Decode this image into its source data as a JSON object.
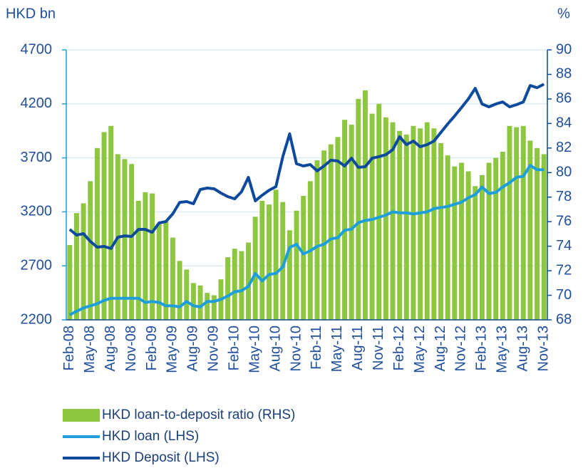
{
  "chart_data": {
    "type": "combo",
    "y_label": "HKD bn",
    "y2_label": "%",
    "categories": [
      "Feb-08",
      null,
      null,
      "May-08",
      null,
      null,
      "Aug-08",
      null,
      null,
      "Nov-08",
      null,
      null,
      "Feb-09",
      null,
      null,
      "May-09",
      null,
      null,
      "Aug-09",
      null,
      null,
      "Nov-09",
      null,
      null,
      "Feb-10",
      null,
      null,
      "May-10",
      null,
      null,
      "Aug-10",
      null,
      null,
      "Nov-10",
      null,
      null,
      "Feb-11",
      null,
      null,
      "May-11",
      null,
      null,
      "Aug-11",
      null,
      null,
      "Nov-11",
      null,
      null,
      "Feb-12",
      null,
      null,
      "May-12",
      null,
      null,
      "Aug-12",
      null,
      null,
      "Nov-12",
      null,
      null,
      "Feb-13",
      null,
      null,
      "May-13",
      null,
      null,
      "Aug-13",
      null,
      null,
      "Nov-13"
    ],
    "series": [
      {
        "name": "HKD loan-to-deposit ratio (RHS)",
        "type": "bar",
        "axis": "y2",
        "color": "#8dc63f",
        "values": [
          74.1,
          76.7,
          77.5,
          79.3,
          82.0,
          83.3,
          83.8,
          81.5,
          81.1,
          80.7,
          77.7,
          78.4,
          78.3,
          75.8,
          76.0,
          74.7,
          72.8,
          72.1,
          71.0,
          70.8,
          70.2,
          70.0,
          71.3,
          73.1,
          73.8,
          73.6,
          74.3,
          76.4,
          77.7,
          77.4,
          78.6,
          77.6,
          75.3,
          76.9,
          78.1,
          79.3,
          81.0,
          81.8,
          82.3,
          82.9,
          84.3,
          83.9,
          86.0,
          86.7,
          84.8,
          85.6,
          84.5,
          84.1,
          83.4,
          83.1,
          83.8,
          83.6,
          84.1,
          83.6,
          82.4,
          81.4,
          80.5,
          80.8,
          80.1,
          78.9,
          79.8,
          80.8,
          81.2,
          81.7,
          83.8,
          83.7,
          83.8,
          82.6,
          82.0,
          81.5
        ]
      },
      {
        "name": "HKD loan (LHS)",
        "type": "line",
        "color": "#1e9fdc",
        "values": [
          2246,
          2280,
          2310,
          2330,
          2350,
          2380,
          2400,
          2400,
          2400,
          2400,
          2400,
          2360,
          2370,
          2360,
          2330,
          2330,
          2320,
          2370,
          2330,
          2320,
          2370,
          2370,
          2390,
          2420,
          2460,
          2470,
          2510,
          2630,
          2560,
          2620,
          2630,
          2690,
          2870,
          2900,
          2810,
          2840,
          2880,
          2900,
          2950,
          2960,
          3030,
          3040,
          3100,
          3120,
          3130,
          3150,
          3170,
          3200,
          3190,
          3190,
          3180,
          3190,
          3200,
          3230,
          3240,
          3250,
          3270,
          3290,
          3330,
          3360,
          3430,
          3370,
          3380,
          3430,
          3470,
          3520,
          3530,
          3630,
          3590,
          3590
        ]
      },
      {
        "name": "HKD Deposit (LHS)",
        "type": "line",
        "color": "#0d4a9c",
        "values": [
          3038,
          2985,
          2998,
          2926,
          2873,
          2880,
          2860,
          2965,
          2978,
          2972,
          3038,
          3038,
          3011,
          3097,
          3110,
          3183,
          3288,
          3295,
          3275,
          3407,
          3420,
          3414,
          3374,
          3341,
          3321,
          3387,
          3519,
          3302,
          3354,
          3400,
          3433,
          3711,
          3922,
          3645,
          3625,
          3638,
          3579,
          3625,
          3678,
          3671,
          3625,
          3697,
          3612,
          3618,
          3697,
          3711,
          3730,
          3776,
          3895,
          3823,
          3856,
          3803,
          3823,
          3856,
          3935,
          4014,
          4087,
          4166,
          4245,
          4344,
          4199,
          4172,
          4199,
          4218,
          4172,
          4192,
          4218,
          4370,
          4350,
          4383
        ]
      }
    ],
    "ylim": [
      2200,
      4700
    ],
    "yticks": [
      2200,
      2700,
      3200,
      3700,
      4200,
      4700
    ],
    "y2lim": [
      68,
      90
    ],
    "y2ticks": [
      68,
      70,
      72,
      74,
      76,
      78,
      80,
      82,
      84,
      86,
      88,
      90
    ],
    "grid": true
  }
}
